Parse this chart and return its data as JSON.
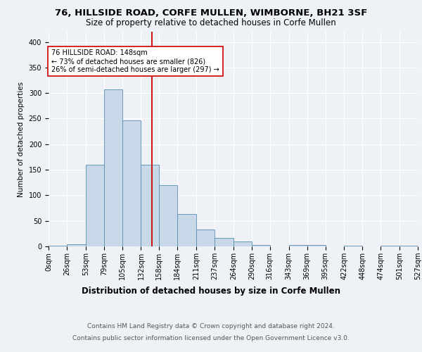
{
  "title1": "76, HILLSIDE ROAD, CORFE MULLEN, WIMBORNE, BH21 3SF",
  "title2": "Size of property relative to detached houses in Corfe Mullen",
  "xlabel": "Distribution of detached houses by size in Corfe Mullen",
  "ylabel": "Number of detached properties",
  "footnote1": "Contains HM Land Registry data © Crown copyright and database right 2024.",
  "footnote2": "Contains public sector information licensed under the Open Government Licence v3.0.",
  "bin_edges": [
    0,
    26,
    53,
    79,
    105,
    132,
    158,
    184,
    211,
    237,
    264,
    290,
    316,
    343,
    369,
    395,
    422,
    448,
    474,
    501,
    527
  ],
  "bin_labels": [
    "0sqm",
    "26sqm",
    "53sqm",
    "79sqm",
    "105sqm",
    "132sqm",
    "158sqm",
    "184sqm",
    "211sqm",
    "237sqm",
    "264sqm",
    "290sqm",
    "316sqm",
    "343sqm",
    "369sqm",
    "395sqm",
    "422sqm",
    "448sqm",
    "474sqm",
    "501sqm",
    "527sqm"
  ],
  "bar_heights": [
    2,
    4,
    160,
    307,
    246,
    160,
    120,
    63,
    33,
    16,
    9,
    3,
    0,
    3,
    3,
    0,
    2,
    0,
    2,
    2
  ],
  "bar_color": "#c8d8e8",
  "bar_edge_color": "#5b8db0",
  "vline_x": 148,
  "vline_color": "#cc0000",
  "annotation_text": "76 HILLSIDE ROAD: 148sqm\n← 73% of detached houses are smaller (826)\n26% of semi-detached houses are larger (297) →",
  "annotation_box_color": "#ffffff",
  "annotation_box_edge": "#cc0000",
  "ylim": [
    0,
    420
  ],
  "background_color": "#eef2f7",
  "grid_color": "#ffffff",
  "title1_fontsize": 9.5,
  "title2_fontsize": 8.5,
  "xlabel_fontsize": 8.5,
  "ylabel_fontsize": 7.5,
  "tick_fontsize": 7,
  "annotation_fontsize": 7,
  "footnote_fontsize": 6.5
}
